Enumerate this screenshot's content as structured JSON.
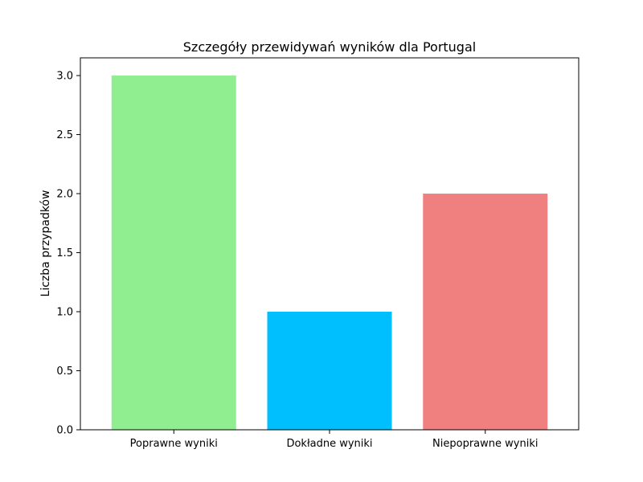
{
  "chart_data": {
    "type": "bar",
    "title": "Szczegóły przewidywań wyników dla Portugal",
    "xlabel": "",
    "ylabel": "Liczba przypadków",
    "categories": [
      "Poprawne wyniki",
      "Dokładne wyniki",
      "Niepoprawne wyniki"
    ],
    "values": [
      3,
      1,
      2
    ],
    "colors": [
      "#90ee90",
      "#00bfff",
      "#f08080"
    ],
    "ylim": [
      0,
      3.15
    ],
    "yticks": [
      "0.0",
      "0.5",
      "1.0",
      "1.5",
      "2.0",
      "2.5",
      "3.0"
    ],
    "grid": false,
    "legend": false
  }
}
